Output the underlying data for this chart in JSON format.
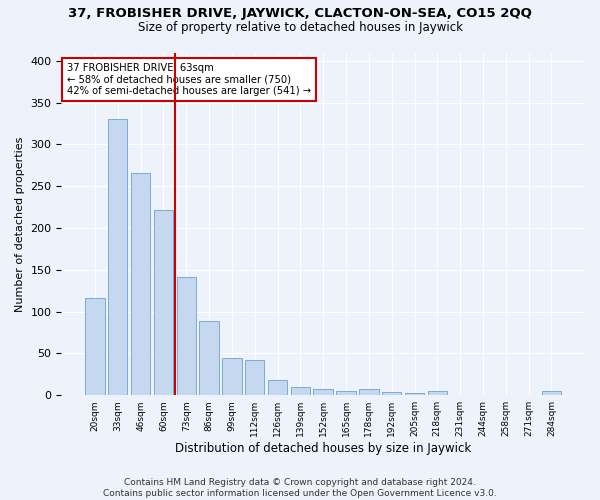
{
  "title1": "37, FROBISHER DRIVE, JAYWICK, CLACTON-ON-SEA, CO15 2QQ",
  "title2": "Size of property relative to detached houses in Jaywick",
  "xlabel": "Distribution of detached houses by size in Jaywick",
  "ylabel": "Number of detached properties",
  "categories": [
    "20sqm",
    "33sqm",
    "46sqm",
    "60sqm",
    "73sqm",
    "86sqm",
    "99sqm",
    "112sqm",
    "126sqm",
    "139sqm",
    "152sqm",
    "165sqm",
    "178sqm",
    "192sqm",
    "205sqm",
    "218sqm",
    "231sqm",
    "244sqm",
    "258sqm",
    "271sqm",
    "284sqm"
  ],
  "values": [
    116,
    331,
    266,
    222,
    141,
    89,
    45,
    42,
    18,
    10,
    7,
    5,
    7,
    4,
    3,
    5,
    0,
    0,
    0,
    0,
    5
  ],
  "bar_color": "#c5d8f0",
  "bar_edge_color": "#7aadd4",
  "redline_x": 3.5,
  "annotation_line1": "37 FROBISHER DRIVE: 63sqm",
  "annotation_line2": "← 58% of detached houses are smaller (750)",
  "annotation_line3": "42% of semi-detached houses are larger (541) →",
  "annotation_box_color": "white",
  "annotation_box_edge_color": "#cc0000",
  "redline_color": "#cc0000",
  "footer": "Contains HM Land Registry data © Crown copyright and database right 2024.\nContains public sector information licensed under the Open Government Licence v3.0.",
  "ylim": [
    0,
    410
  ],
  "bg_color": "#eef2fb"
}
